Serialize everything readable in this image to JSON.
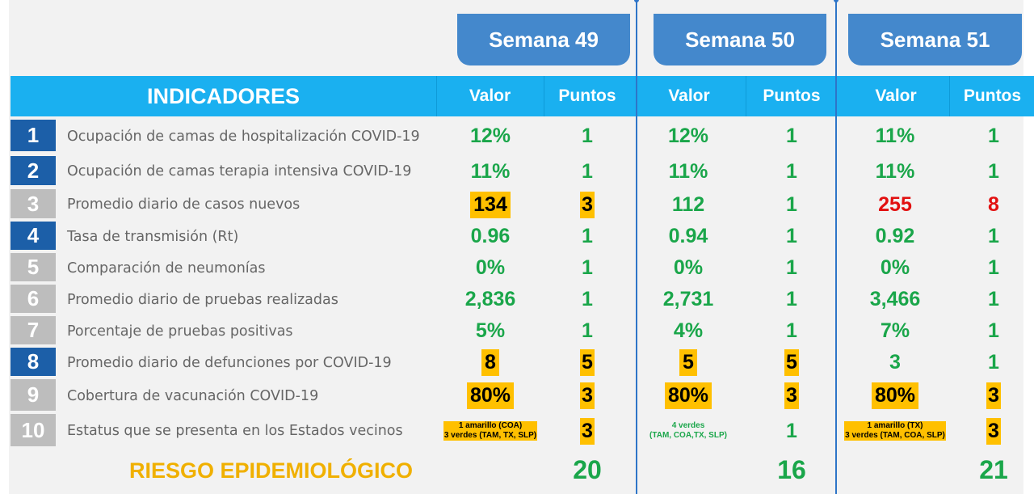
{
  "weeks": [
    "Semana 49",
    "Semana 50",
    "Semana 51"
  ],
  "header": {
    "indicadores": "INDICADORES",
    "valor": "Valor",
    "puntos": "Puntos"
  },
  "colors": {
    "blue": "#1c5fa8",
    "grey": "#bdbdbd",
    "header": "#1ab0f0",
    "green": "#1aa64a",
    "yellow": "#ffc000",
    "red": "#e21010",
    "gold": "#f0b000"
  },
  "rows": [
    {
      "num": "1",
      "numColor": "blue",
      "label": "Ocupación de camas de hospitalización COVID-19",
      "cells": [
        {
          "v": "12%",
          "p": "1"
        },
        {
          "v": "12%",
          "p": "1"
        },
        {
          "v": "11%",
          "p": "1"
        }
      ]
    },
    {
      "num": "2",
      "numColor": "blue",
      "label": "Ocupación de camas terapia intensiva COVID-19",
      "cells": [
        {
          "v": "11%",
          "p": "1"
        },
        {
          "v": "11%",
          "p": "1"
        },
        {
          "v": "11%",
          "p": "1"
        }
      ]
    },
    {
      "num": "3",
      "numColor": "grey",
      "label": "Promedio diario de casos nuevos",
      "cells": [
        {
          "v": "134",
          "p": "3",
          "vs": "hl",
          "ps": "hl"
        },
        {
          "v": "112",
          "p": "1"
        },
        {
          "v": "255",
          "p": "8",
          "vs": "red",
          "ps": "red"
        }
      ]
    },
    {
      "num": "4",
      "numColor": "blue",
      "label": "Tasa de transmisión (Rt)",
      "cells": [
        {
          "v": "0.96",
          "p": "1"
        },
        {
          "v": "0.94",
          "p": "1"
        },
        {
          "v": "0.92",
          "p": "1"
        }
      ]
    },
    {
      "num": "5",
      "numColor": "grey",
      "label": "Comparación de neumonías",
      "cells": [
        {
          "v": "0%",
          "p": "1"
        },
        {
          "v": "0%",
          "p": "1"
        },
        {
          "v": "0%",
          "p": "1"
        }
      ]
    },
    {
      "num": "6",
      "numColor": "grey",
      "label": "Promedio diario de pruebas realizadas",
      "cells": [
        {
          "v": "2,836",
          "p": "1"
        },
        {
          "v": "2,731",
          "p": "1"
        },
        {
          "v": "3,466",
          "p": "1"
        }
      ]
    },
    {
      "num": "7",
      "numColor": "grey",
      "label": "Porcentaje de pruebas positivas",
      "cells": [
        {
          "v": "5%",
          "p": "1"
        },
        {
          "v": "4%",
          "p": "1"
        },
        {
          "v": "7%",
          "p": "1"
        }
      ]
    },
    {
      "num": "8",
      "numColor": "blue",
      "label": "Promedio diario de defunciones por COVID-19",
      "cells": [
        {
          "v": "8",
          "p": "5",
          "vs": "hl",
          "ps": "hl"
        },
        {
          "v": "5",
          "p": "5",
          "vs": "hl",
          "ps": "hl"
        },
        {
          "v": "3",
          "p": "1"
        }
      ]
    },
    {
      "num": "9",
      "numColor": "grey",
      "label": "Cobertura de vacunación COVID-19",
      "cells": [
        {
          "v": "80%",
          "p": "3",
          "vs": "hl",
          "ps": "hl"
        },
        {
          "v": "80%",
          "p": "3",
          "vs": "hl",
          "ps": "hl"
        },
        {
          "v": "80%",
          "p": "3",
          "vs": "hl",
          "ps": "hl"
        }
      ]
    },
    {
      "num": "10",
      "numColor": "grey",
      "label": "Estatus que se presenta en los Estados vecinos",
      "cells": [
        {
          "small": [
            "1 amarillo (COA)",
            "3 verdes (TAM, TX, SLP)"
          ],
          "vs": "hl",
          "p": "3",
          "ps": "hl"
        },
        {
          "small": [
            "4 verdes",
            "(TAM, COA,TX, SLP)"
          ],
          "vs": "green",
          "p": "1"
        },
        {
          "small": [
            "1 amarillo (TX)",
            "3 verdes (TAM, COA, SLP)"
          ],
          "vs": "hl",
          "p": "3",
          "ps": "hl"
        }
      ]
    }
  ],
  "totals": {
    "label": "RIESGO EPIDEMIOLÓGICO",
    "values": [
      "20",
      "16",
      "21"
    ]
  }
}
